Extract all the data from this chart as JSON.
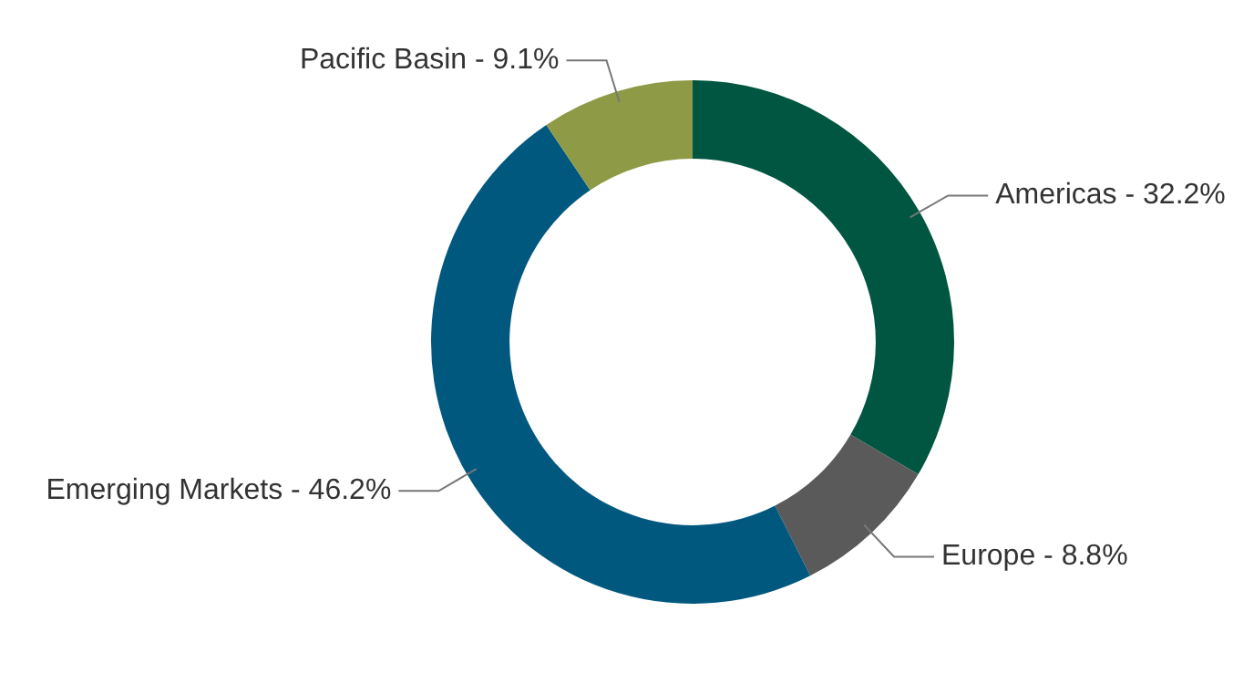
{
  "chart_data": {
    "type": "donut",
    "categories": [
      "Americas",
      "Europe",
      "Emerging Markets",
      "Pacific Basin"
    ],
    "values": [
      32.2,
      8.8,
      46.2,
      9.1
    ],
    "value_labels": [
      "32.2%",
      "8.8%",
      "46.2%",
      "9.1%"
    ],
    "colors": [
      "#005640",
      "#5a5a5a",
      "#00587f",
      "#8e9a45"
    ]
  }
}
